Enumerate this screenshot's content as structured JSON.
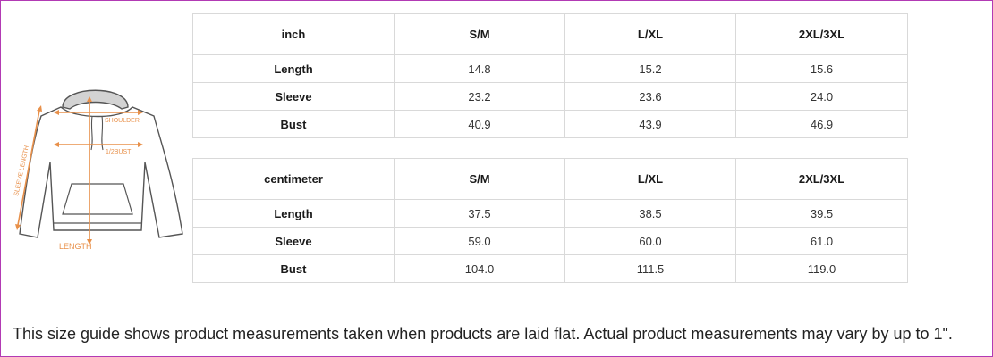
{
  "colors": {
    "frame": "#b23ab4",
    "measure_lines": "#e8904a",
    "garment_outline": "#555555",
    "hood_fill": "#d3d3d3"
  },
  "illustration": {
    "labels": {
      "shoulder": "SHOULDER",
      "half_bust": "1/2BUST",
      "sleeve_length": "SLEEVE LENGTH",
      "length": "LENGTH"
    }
  },
  "tables": [
    {
      "unit": "inch",
      "sizes": [
        "S/M",
        "L/XL",
        "2XL/3XL"
      ],
      "rows": [
        {
          "label": "Length",
          "values": [
            "14.8",
            "15.2",
            "15.6"
          ]
        },
        {
          "label": "Sleeve",
          "values": [
            "23.2",
            "23.6",
            "24.0"
          ]
        },
        {
          "label": "Bust",
          "values": [
            "40.9",
            "43.9",
            "46.9"
          ]
        }
      ]
    },
    {
      "unit": "centimeter",
      "sizes": [
        "S/M",
        "L/XL",
        "2XL/3XL"
      ],
      "rows": [
        {
          "label": "Length",
          "values": [
            "37.5",
            "38.5",
            "39.5"
          ]
        },
        {
          "label": "Sleeve",
          "values": [
            "59.0",
            "60.0",
            "61.0"
          ]
        },
        {
          "label": "Bust",
          "values": [
            "104.0",
            "111.5",
            "119.0"
          ]
        }
      ]
    }
  ],
  "footer_note": "This size guide shows product measurements taken when products are laid flat. Actual product measurements may vary by up to 1\"."
}
